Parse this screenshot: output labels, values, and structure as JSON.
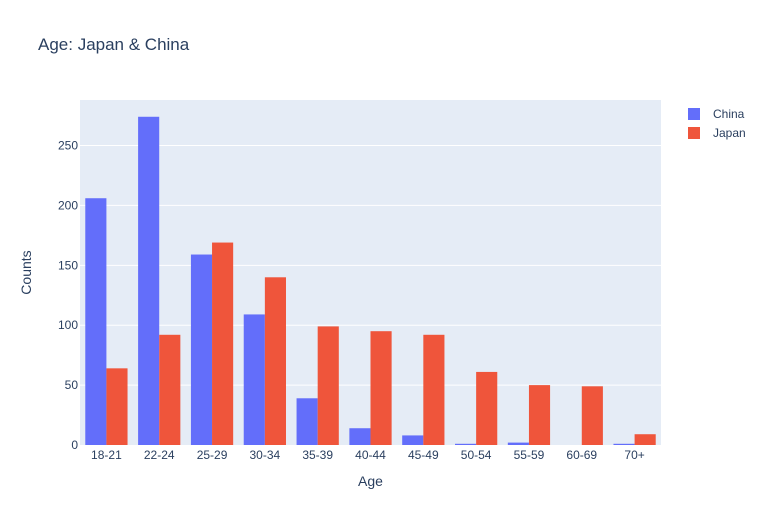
{
  "chart_data": {
    "type": "bar",
    "title": "Age: Japan & China",
    "xlabel": "Age",
    "ylabel": "Counts",
    "categories": [
      "18-21",
      "22-24",
      "25-29",
      "30-34",
      "35-39",
      "40-44",
      "45-49",
      "50-54",
      "55-59",
      "60-69",
      "70+"
    ],
    "series": [
      {
        "name": "China",
        "color": "#636efa",
        "values": [
          206,
          274,
          159,
          109,
          39,
          14,
          8,
          1,
          2,
          0,
          1
        ]
      },
      {
        "name": "Japan",
        "color": "#ef553b",
        "values": [
          64,
          92,
          169,
          140,
          99,
          95,
          92,
          61,
          50,
          49,
          9
        ]
      }
    ],
    "ylim": [
      0,
      288
    ],
    "yticks": [
      0,
      50,
      100,
      150,
      200,
      250
    ],
    "grid": true,
    "legend": "top-right",
    "plot_background": "#e5ecf6"
  }
}
